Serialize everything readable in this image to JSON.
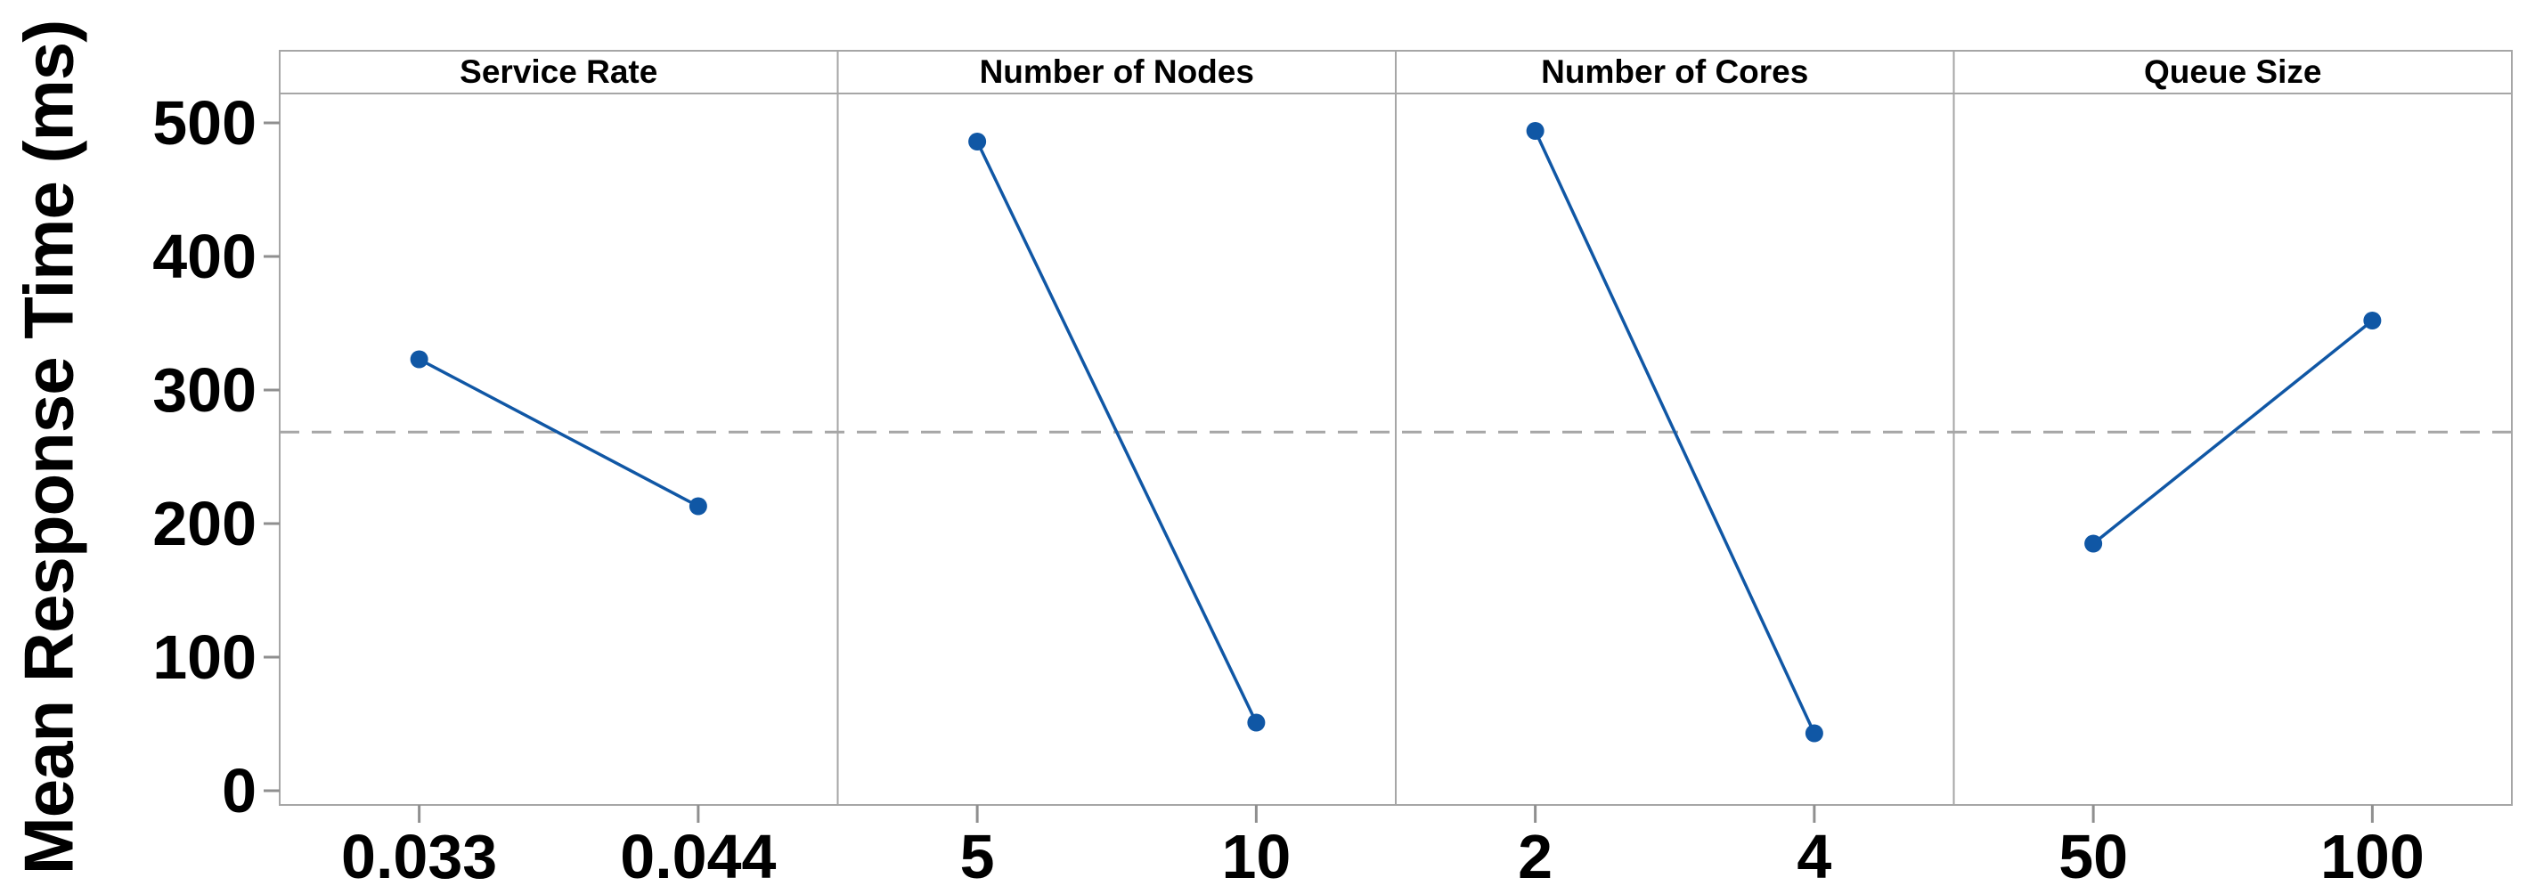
{
  "chart_data": {
    "type": "line",
    "subtype": "main-effects-plot",
    "ylabel": "Mean Response Time (ms)",
    "yticks": [
      0,
      100,
      200,
      300,
      400,
      500
    ],
    "ylim": [
      -11,
      522
    ],
    "grid": false,
    "legend": "none",
    "reference_line": {
      "value": 268.5,
      "style": "dashed",
      "meaning": "overall mean"
    },
    "panels": [
      {
        "title": "Service Rate",
        "categories": [
          "0.033",
          "0.044"
        ],
        "values": [
          323,
          213
        ]
      },
      {
        "title": "Number of Nodes",
        "categories": [
          "5",
          "10"
        ],
        "values": [
          486,
          51
        ]
      },
      {
        "title": "Number of Cores",
        "categories": [
          "2",
          "4"
        ],
        "values": [
          494,
          43
        ]
      },
      {
        "title": "Queue Size",
        "categories": [
          "50",
          "100"
        ],
        "values": [
          185,
          352
        ]
      }
    ],
    "colors": {
      "series": "#1057A5",
      "frame": "#A6A6A6",
      "tick": "#8F8F8F",
      "reference": "#A6A6A6",
      "text": "#000000",
      "background": "#FFFFFF"
    }
  }
}
